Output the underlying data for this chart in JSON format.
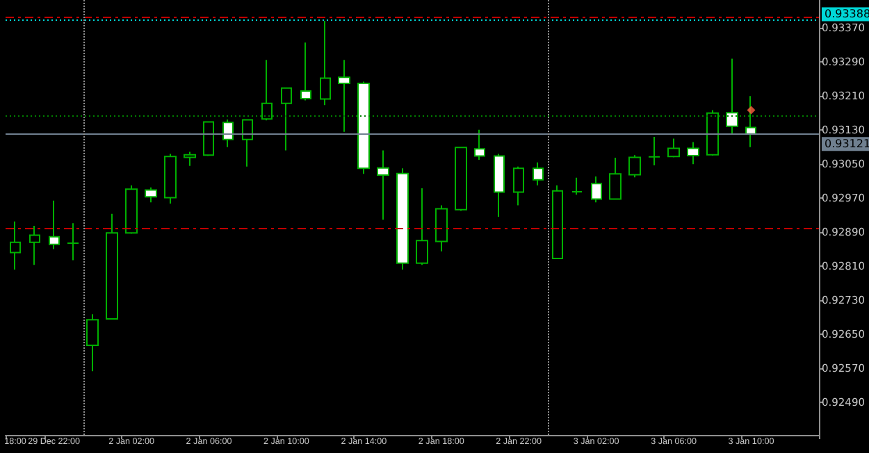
{
  "chart_data": {
    "type": "candlestick",
    "categories": [
      "18:00",
      null,
      "29 Dec 22:00",
      null,
      null,
      null,
      "2 Jan 02:00",
      null,
      null,
      null,
      "2 Jan 06:00",
      null,
      null,
      null,
      "2 Jan 10:00",
      null,
      null,
      null,
      "2 Jan 14:00",
      null,
      null,
      null,
      "2 Jan 18:00",
      null,
      null,
      null,
      "2 Jan 22:00",
      null,
      null,
      null,
      "3 Jan 02:00",
      null,
      null,
      null,
      "3 Jan 06:00",
      null,
      null,
      null,
      "3 Jan 10:00"
    ],
    "series": [
      {
        "type": "candlestick",
        "color": "#00b000",
        "ohlc": [
          [
            0.92842,
            0.92915,
            0.92802,
            0.92866
          ],
          [
            0.92866,
            0.92905,
            0.92813,
            0.92883
          ],
          [
            0.92879,
            0.92964,
            0.9285,
            0.92861
          ],
          [
            0.92864,
            0.92911,
            0.92824,
            0.92864
          ],
          [
            0.92624,
            0.92697,
            0.92563,
            0.92684
          ],
          [
            0.92686,
            0.92933,
            0.92686,
            0.92888
          ],
          [
            0.92888,
            0.93,
            0.92886,
            0.92991
          ],
          [
            0.92989,
            0.92995,
            0.9296,
            0.92973
          ],
          [
            0.92971,
            0.93074,
            0.92957,
            0.93068
          ],
          [
            0.93066,
            0.93079,
            0.93046,
            0.93072
          ],
          [
            0.93071,
            0.93151,
            0.93069,
            0.93149
          ],
          [
            0.93148,
            0.93155,
            0.9309,
            0.93108
          ],
          [
            0.93108,
            0.93154,
            0.93044,
            0.93154
          ],
          [
            0.93156,
            0.93295,
            0.93153,
            0.93193
          ],
          [
            0.93193,
            0.93229,
            0.93082,
            0.93229
          ],
          [
            0.93222,
            0.93336,
            0.932,
            0.93204
          ],
          [
            0.93203,
            0.93387,
            0.93189,
            0.93252
          ],
          [
            0.93254,
            0.93295,
            0.93126,
            0.9324
          ],
          [
            0.9324,
            0.93244,
            0.93027,
            0.9304
          ],
          [
            0.93041,
            0.93082,
            0.92919,
            0.93024
          ],
          [
            0.93028,
            0.9304,
            0.92802,
            0.92817
          ],
          [
            0.92817,
            0.92993,
            0.92813,
            0.9287
          ],
          [
            0.92868,
            0.92953,
            0.92845,
            0.92945
          ],
          [
            0.92943,
            0.9309,
            0.9294,
            0.93089
          ],
          [
            0.93086,
            0.93131,
            0.9306,
            0.93069
          ],
          [
            0.93069,
            0.93074,
            0.92926,
            0.92984
          ],
          [
            0.92984,
            0.93044,
            0.92953,
            0.9304
          ],
          [
            0.9304,
            0.93054,
            0.93,
            0.93013
          ],
          [
            0.92828,
            0.93,
            0.92827,
            0.92987
          ],
          [
            0.92985,
            0.93018,
            0.92978,
            0.92985
          ],
          [
            0.93004,
            0.93021,
            0.9296,
            0.92968
          ],
          [
            0.92968,
            0.93065,
            0.92966,
            0.93027
          ],
          [
            0.93025,
            0.93071,
            0.93019,
            0.93066
          ],
          [
            0.93067,
            0.93114,
            0.93047,
            0.93067
          ],
          [
            0.93068,
            0.9311,
            0.93066,
            0.93087
          ],
          [
            0.93087,
            0.93102,
            0.9305,
            0.9307
          ],
          [
            0.93072,
            0.93177,
            0.9307,
            0.9317
          ],
          [
            0.93171,
            0.93298,
            0.9312,
            0.93139
          ],
          [
            0.93136,
            0.9321,
            0.9309,
            0.93121
          ]
        ]
      },
      {
        "type": "scatter",
        "color": "#ff6040",
        "marker": "diamond",
        "x": [
          "3 Jan 10:00"
        ],
        "values": [
          0.93177
        ]
      }
    ],
    "ylim": [
      0.92413,
      0.93436
    ],
    "yticks": [
      {
        "value": 0.9249,
        "label": "0.92490"
      },
      {
        "value": 0.9257,
        "label": "0.92570"
      },
      {
        "value": 0.9265,
        "label": "0.92650"
      },
      {
        "value": 0.9273,
        "label": "0.92730"
      },
      {
        "value": 0.9281,
        "label": "0.92810"
      },
      {
        "value": 0.9289,
        "label": "0.92890"
      },
      {
        "value": 0.9297,
        "label": "0.92970"
      },
      {
        "value": 0.9305,
        "label": "0.93050"
      },
      {
        "value": 0.9313,
        "label": "0.93130"
      },
      {
        "value": 0.9321,
        "label": "0.93210"
      },
      {
        "value": 0.9329,
        "label": "0.93290"
      },
      {
        "value": 0.9337,
        "label": "0.93370"
      }
    ],
    "ref_lines": [
      {
        "axis": "y",
        "value": 0.93396,
        "label": null,
        "color": "#c00000",
        "line_style": "dashed"
      },
      {
        "axis": "y",
        "value": 0.93388,
        "label": "0.93388",
        "color": "#00d8d8",
        "line_style": "dotted"
      },
      {
        "axis": "y",
        "value": 0.93164,
        "label": null,
        "color": "#008000",
        "line_style": "dotted"
      },
      {
        "axis": "y",
        "value": 0.93121,
        "label": "0.93121",
        "color": "#708090",
        "line_style": "solid"
      },
      {
        "axis": "y",
        "value": 0.92898,
        "label": null,
        "color": "#c00000",
        "line_style": "dashed"
      }
    ],
    "grid": false
  }
}
